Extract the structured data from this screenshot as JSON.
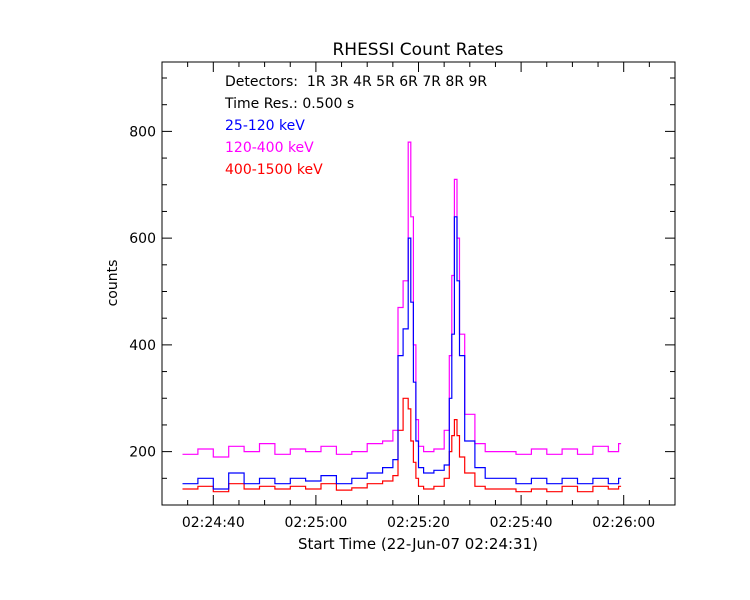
{
  "chart_data": {
    "type": "line",
    "title": "RHESSI Count Rates",
    "xlabel": "Start Time (22-Jun-07 02:24:31)",
    "ylabel": "counts",
    "x_tick_labels": [
      "02:24:40",
      "02:25:00",
      "02:25:20",
      "02:25:40",
      "02:26:00"
    ],
    "x_tick_seconds": [
      9,
      29,
      49,
      69,
      89
    ],
    "x_start_label": "02:24:31",
    "x_range_seconds": [
      -1,
      99
    ],
    "y_tick_labels": [
      "200",
      "400",
      "600",
      "800"
    ],
    "y_ticks": [
      200,
      400,
      600,
      800
    ],
    "ylim": [
      100,
      930
    ],
    "grid": false,
    "legend_position": "top-left",
    "annotations": {
      "detectors": "Detectors:  1R 3R 4R 5R 6R 7R 8R 9R",
      "time_res": "Time Res.: 0.500 s"
    },
    "time_resolution_s": 0.5,
    "series": [
      {
        "name": "25-120 keV",
        "color": "#0000ff",
        "x_seconds": [
          3,
          6,
          9,
          12,
          15,
          18,
          21,
          24,
          27,
          30,
          33,
          36,
          39,
          42,
          44,
          45,
          46,
          47,
          47.5,
          48,
          48.5,
          49,
          50,
          52,
          54,
          55,
          55.5,
          56,
          56.5,
          57,
          58,
          60,
          62,
          65,
          68,
          71,
          74,
          77,
          80,
          83,
          86,
          88
        ],
        "values": [
          140,
          150,
          130,
          160,
          140,
          150,
          140,
          150,
          145,
          155,
          140,
          150,
          160,
          170,
          185,
          380,
          430,
          600,
          480,
          330,
          220,
          170,
          160,
          165,
          175,
          300,
          420,
          640,
          520,
          380,
          220,
          170,
          150,
          150,
          140,
          150,
          140,
          150,
          140,
          150,
          140,
          150
        ]
      },
      {
        "name": "120-400 keV",
        "color": "#ff00ff",
        "x_seconds": [
          3,
          6,
          9,
          12,
          15,
          18,
          21,
          24,
          27,
          30,
          33,
          36,
          39,
          42,
          44,
          45,
          46,
          47,
          47.5,
          48,
          48.5,
          49,
          50,
          52,
          54,
          55,
          55.5,
          56,
          56.5,
          57,
          58,
          60,
          62,
          65,
          68,
          71,
          74,
          77,
          80,
          83,
          86,
          88
        ],
        "values": [
          195,
          205,
          190,
          210,
          200,
          215,
          195,
          205,
          200,
          210,
          195,
          200,
          215,
          220,
          240,
          470,
          520,
          780,
          640,
          400,
          260,
          210,
          200,
          205,
          240,
          380,
          530,
          710,
          600,
          420,
          270,
          215,
          200,
          200,
          195,
          205,
          195,
          205,
          195,
          210,
          200,
          215
        ]
      },
      {
        "name": "400-1500 keV",
        "color": "#ff0000",
        "x_seconds": [
          3,
          6,
          9,
          12,
          15,
          18,
          21,
          24,
          27,
          30,
          33,
          36,
          39,
          42,
          44,
          45,
          46,
          47,
          47.5,
          48,
          48.5,
          49,
          50,
          52,
          54,
          55,
          55.5,
          56,
          56.5,
          57,
          58,
          60,
          62,
          65,
          68,
          71,
          74,
          77,
          80,
          83,
          86,
          88
        ],
        "values": [
          130,
          135,
          125,
          140,
          130,
          135,
          130,
          135,
          130,
          140,
          128,
          132,
          140,
          145,
          155,
          240,
          300,
          280,
          220,
          180,
          150,
          135,
          130,
          135,
          150,
          200,
          230,
          260,
          230,
          190,
          160,
          135,
          130,
          130,
          125,
          130,
          125,
          135,
          125,
          135,
          130,
          135
        ]
      }
    ]
  }
}
